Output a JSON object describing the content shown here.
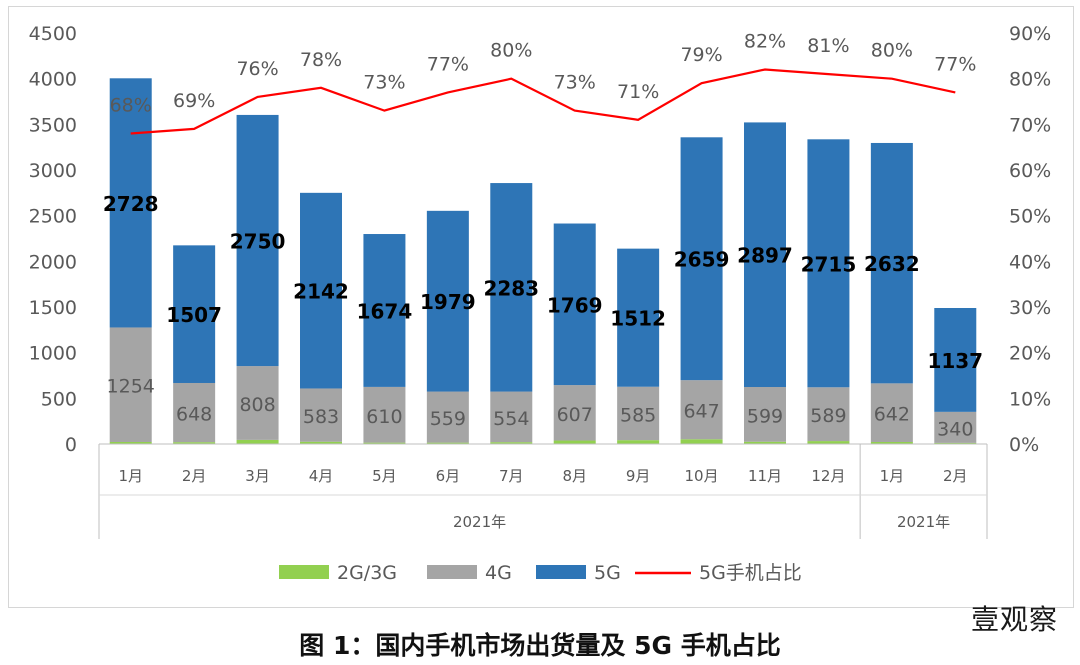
{
  "chart_data": {
    "type": "bar",
    "stacked": true,
    "categories": [
      "1月",
      "2月",
      "3月",
      "4月",
      "5月",
      "6月",
      "7月",
      "8月",
      "9月",
      "10月",
      "11月",
      "12月",
      "1月",
      "2月"
    ],
    "groups": [
      {
        "label": "2021年",
        "count": 12
      },
      {
        "label": "2021年",
        "count": 2
      }
    ],
    "series": [
      {
        "name": "2G/3G",
        "color": "#92d050",
        "values": [
          22,
          20,
          45,
          25,
          15,
          15,
          20,
          38,
          42,
          52,
          25,
          32,
          22,
          12
        ]
      },
      {
        "name": "4G",
        "color": "#a5a5a5",
        "values": [
          1254,
          648,
          808,
          583,
          610,
          559,
          554,
          607,
          585,
          647,
          599,
          589,
          642,
          340
        ]
      },
      {
        "name": "5G",
        "color": "#2e75b6",
        "values": [
          2728,
          1507,
          2750,
          2142,
          1674,
          1979,
          2283,
          1769,
          1512,
          2659,
          2897,
          2715,
          2632,
          1137
        ]
      }
    ],
    "line": {
      "name": "5G手机占比",
      "color": "#ff0000",
      "values": [
        68,
        69,
        76,
        78,
        73,
        77,
        80,
        73,
        71,
        79,
        82,
        81,
        80,
        77
      ],
      "labels": [
        "68%",
        "69%",
        "76%",
        "78%",
        "73%",
        "77%",
        "80%",
        "73%",
        "71%",
        "79%",
        "82%",
        "81%",
        "80%",
        "77%"
      ],
      "axis": "right"
    },
    "ylim": [
      0,
      4500
    ],
    "yticks": [
      "0",
      "500",
      "1000",
      "1500",
      "2000",
      "2500",
      "3000",
      "3500",
      "4000",
      "4500"
    ],
    "y2lim": [
      0,
      90
    ],
    "y2ticks": [
      "0%",
      "10%",
      "20%",
      "30%",
      "40%",
      "50%",
      "60%",
      "70%",
      "80%",
      "90%"
    ],
    "legend_position": "bottom",
    "grid": false
  },
  "caption": "图 1：国内手机市场出货量及 5G 手机占比",
  "watermark": "壹观察"
}
